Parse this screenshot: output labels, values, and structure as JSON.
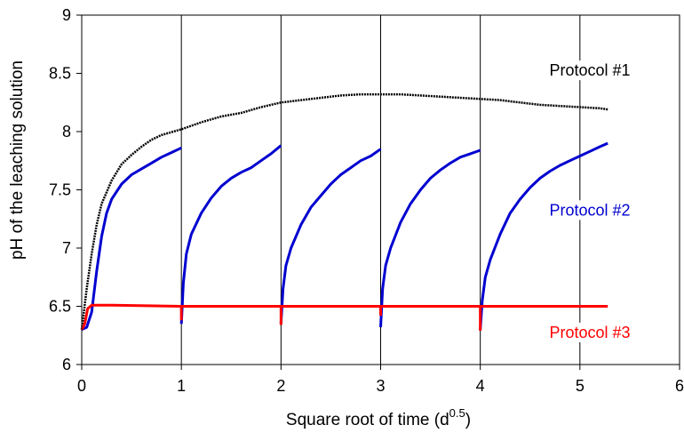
{
  "chart_data": {
    "type": "line",
    "xlabel": "Square root of time (d",
    "xlabel_sup": "0.5",
    "xlabel_end": ")",
    "ylabel": "pH of the leaching solution",
    "xlim": [
      0,
      6
    ],
    "ylim": [
      6,
      9
    ],
    "xticks": [
      0,
      1,
      2,
      3,
      4,
      5,
      6
    ],
    "yticks": [
      6,
      6.5,
      7,
      7.5,
      8,
      8.5,
      9
    ],
    "xtick_labels": [
      "0",
      "1",
      "2",
      "3",
      "4",
      "5",
      "6"
    ],
    "ytick_labels": [
      "6",
      "6.5",
      "7",
      "7.5",
      "8",
      "8.5",
      "9"
    ],
    "grid": "vertical",
    "series": [
      {
        "name": "Protocol #1",
        "color": "#000000",
        "points": [
          [
            0,
            6.3
          ],
          [
            0.05,
            6.65
          ],
          [
            0.1,
            6.95
          ],
          [
            0.15,
            7.2
          ],
          [
            0.2,
            7.38
          ],
          [
            0.3,
            7.58
          ],
          [
            0.4,
            7.72
          ],
          [
            0.5,
            7.8
          ],
          [
            0.6,
            7.87
          ],
          [
            0.7,
            7.93
          ],
          [
            0.8,
            7.97
          ],
          [
            1.0,
            8.02
          ],
          [
            1.2,
            8.08
          ],
          [
            1.4,
            8.13
          ],
          [
            1.6,
            8.16
          ],
          [
            1.8,
            8.21
          ],
          [
            2.0,
            8.25
          ],
          [
            2.2,
            8.27
          ],
          [
            2.4,
            8.29
          ],
          [
            2.6,
            8.31
          ],
          [
            2.8,
            8.32
          ],
          [
            3.0,
            8.32
          ],
          [
            3.2,
            8.32
          ],
          [
            3.4,
            8.31
          ],
          [
            3.6,
            8.3
          ],
          [
            3.8,
            8.29
          ],
          [
            4.0,
            8.28
          ],
          [
            4.2,
            8.27
          ],
          [
            4.4,
            8.25
          ],
          [
            4.6,
            8.23
          ],
          [
            4.8,
            8.22
          ],
          [
            5.0,
            8.21
          ],
          [
            5.2,
            8.2
          ],
          [
            5.28,
            8.19
          ]
        ]
      },
      {
        "name": "Protocol #2",
        "color": "#0000d0",
        "segments": [
          [
            [
              0,
              6.3
            ],
            [
              0.05,
              6.32
            ],
            [
              0.1,
              6.45
            ],
            [
              0.15,
              6.8
            ],
            [
              0.2,
              7.1
            ],
            [
              0.25,
              7.3
            ],
            [
              0.3,
              7.42
            ],
            [
              0.4,
              7.55
            ],
            [
              0.5,
              7.63
            ],
            [
              0.6,
              7.68
            ],
            [
              0.7,
              7.73
            ],
            [
              0.8,
              7.78
            ],
            [
              0.9,
              7.82
            ],
            [
              1.0,
              7.86
            ]
          ],
          [
            [
              1.0,
              6.35
            ],
            [
              1.02,
              6.7
            ],
            [
              1.05,
              6.95
            ],
            [
              1.1,
              7.12
            ],
            [
              1.2,
              7.3
            ],
            [
              1.3,
              7.43
            ],
            [
              1.4,
              7.53
            ],
            [
              1.5,
              7.6
            ],
            [
              1.6,
              7.65
            ],
            [
              1.7,
              7.69
            ],
            [
              1.8,
              7.75
            ],
            [
              1.9,
              7.81
            ],
            [
              2.0,
              7.88
            ]
          ],
          [
            [
              2.0,
              6.35
            ],
            [
              2.02,
              6.65
            ],
            [
              2.05,
              6.85
            ],
            [
              2.1,
              7.0
            ],
            [
              2.2,
              7.2
            ],
            [
              2.3,
              7.35
            ],
            [
              2.4,
              7.45
            ],
            [
              2.5,
              7.55
            ],
            [
              2.6,
              7.63
            ],
            [
              2.7,
              7.69
            ],
            [
              2.8,
              7.75
            ],
            [
              2.9,
              7.79
            ],
            [
              3.0,
              7.85
            ]
          ],
          [
            [
              3.0,
              6.32
            ],
            [
              3.02,
              6.65
            ],
            [
              3.05,
              6.85
            ],
            [
              3.1,
              7.0
            ],
            [
              3.2,
              7.22
            ],
            [
              3.3,
              7.38
            ],
            [
              3.4,
              7.5
            ],
            [
              3.5,
              7.6
            ],
            [
              3.6,
              7.67
            ],
            [
              3.7,
              7.73
            ],
            [
              3.8,
              7.78
            ],
            [
              3.9,
              7.81
            ],
            [
              4.0,
              7.84
            ]
          ],
          [
            [
              4.0,
              6.3
            ],
            [
              4.02,
              6.55
            ],
            [
              4.05,
              6.75
            ],
            [
              4.1,
              6.9
            ],
            [
              4.2,
              7.12
            ],
            [
              4.3,
              7.3
            ],
            [
              4.4,
              7.42
            ],
            [
              4.5,
              7.52
            ],
            [
              4.6,
              7.6
            ],
            [
              4.7,
              7.66
            ],
            [
              4.8,
              7.71
            ],
            [
              4.9,
              7.75
            ],
            [
              5.0,
              7.79
            ],
            [
              5.1,
              7.83
            ],
            [
              5.2,
              7.87
            ],
            [
              5.28,
              7.9
            ]
          ]
        ]
      },
      {
        "name": "Protocol #3",
        "color": "#ff0000",
        "points": [
          [
            0,
            6.3
          ],
          [
            0.03,
            6.35
          ],
          [
            0.06,
            6.48
          ],
          [
            0.1,
            6.51
          ],
          [
            0.3,
            6.51
          ],
          [
            1.0,
            6.5
          ],
          [
            2.0,
            6.5
          ],
          [
            3.0,
            6.5
          ],
          [
            4.0,
            6.5
          ],
          [
            5.0,
            6.5
          ],
          [
            5.28,
            6.5
          ]
        ],
        "dips": [
          [
            1.0,
            6.38
          ],
          [
            2.0,
            6.34
          ],
          [
            3.0,
            6.42
          ],
          [
            4.0,
            6.29
          ]
        ]
      }
    ],
    "annotations": [
      {
        "text": "Protocol #1",
        "x": 5.1,
        "y": 8.48,
        "color": "#000000"
      },
      {
        "text": "Protocol #2",
        "x": 5.1,
        "y": 7.28,
        "color": "#0000d0"
      },
      {
        "text": "Protocol #3",
        "x": 5.1,
        "y": 6.23,
        "color": "#ff0000"
      }
    ]
  }
}
